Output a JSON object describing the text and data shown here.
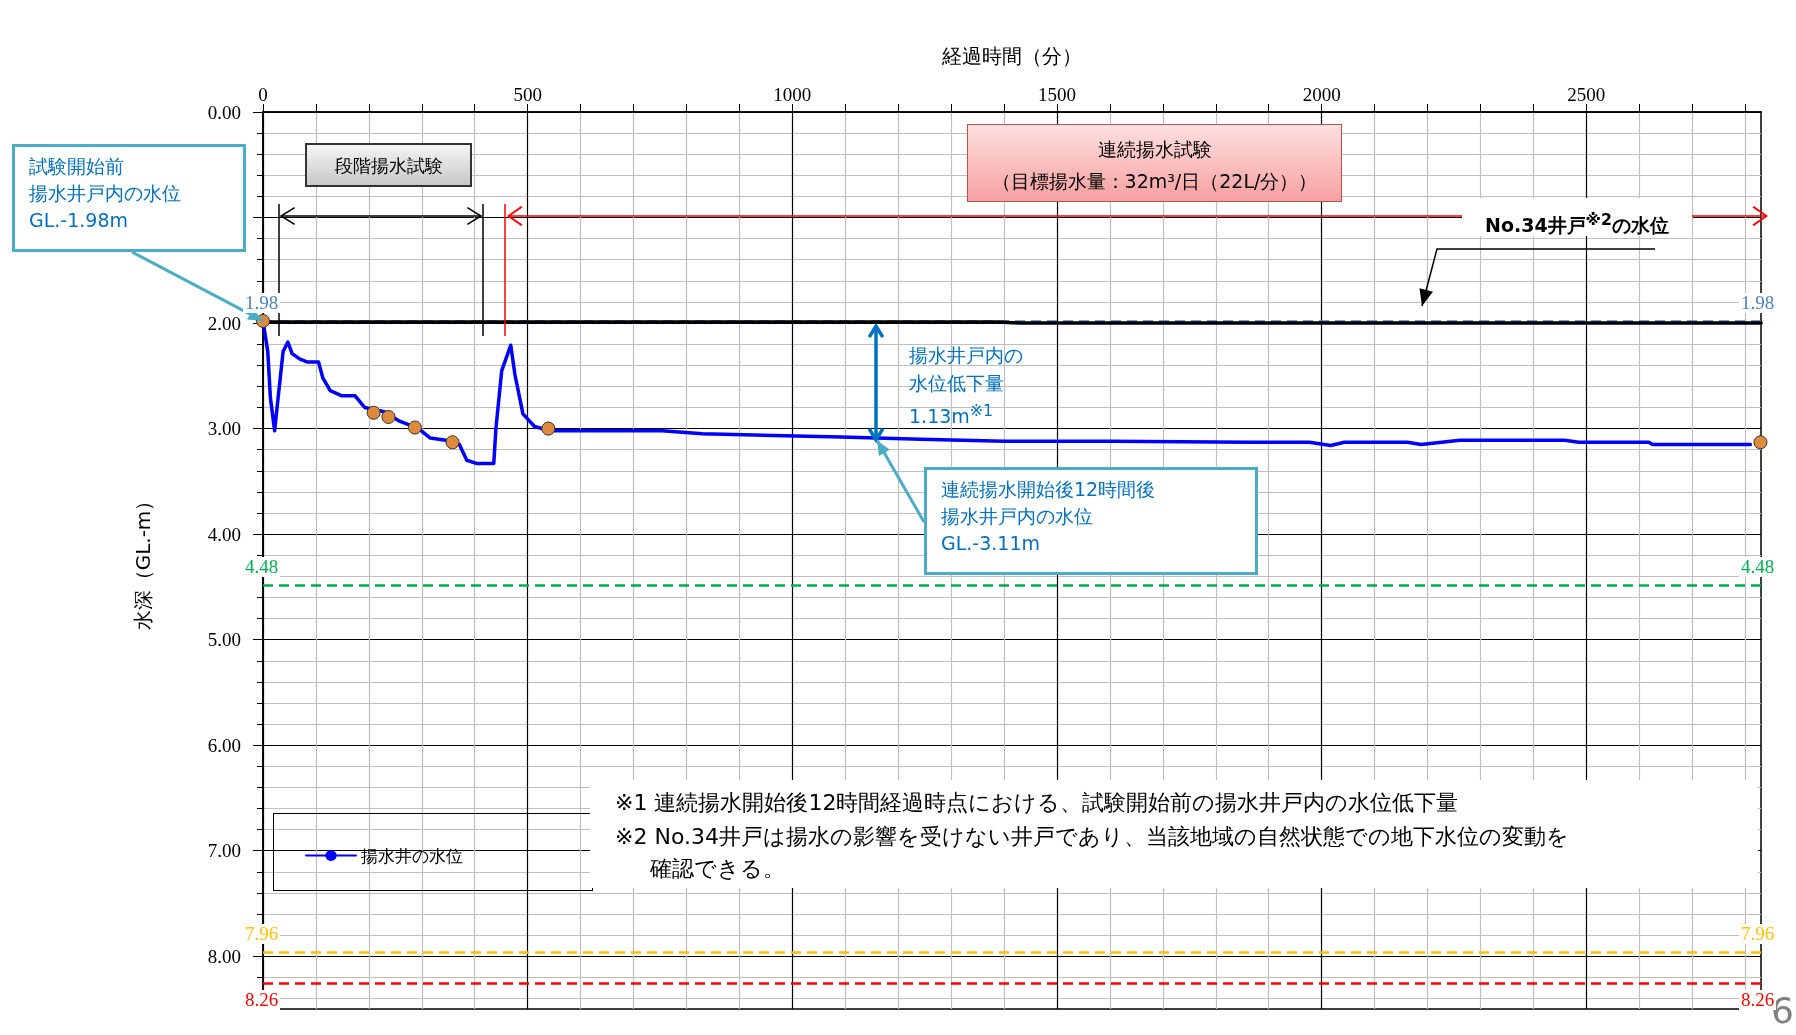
{
  "chart_data": {
    "type": "line",
    "xlabel": "経過時間（分）",
    "ylabel": "水深（GL.-m）",
    "xlim": [
      0,
      2830
    ],
    "xticks": [
      0,
      500,
      1000,
      1500,
      2000,
      2500
    ],
    "ylim": [
      8.5,
      0
    ],
    "yticks": [
      {
        "value": 0,
        "label": "0.00"
      },
      {
        "value": 1,
        "label": null
      },
      {
        "value": 2,
        "label": "2.00"
      },
      {
        "value": 3,
        "label": "3.00"
      },
      {
        "value": 4,
        "label": "4.00"
      },
      {
        "value": 5,
        "label": "5.00"
      },
      {
        "value": 6,
        "label": "6.00"
      },
      {
        "value": 7,
        "label": "7.00"
      },
      {
        "value": 8,
        "label": "8.00"
      }
    ],
    "grid": true,
    "legend": "bottom left",
    "series": [
      {
        "name": "揚水井の水位",
        "type": "line",
        "color": "#0000ff",
        "x": [
          0,
          9,
          14,
          22,
          27,
          38,
          47,
          55,
          69,
          84,
          105,
          113,
          127,
          149,
          174,
          192,
          229,
          258,
          294,
          316,
          345,
          371,
          385,
          403,
          436,
          440,
          451,
          468,
          476,
          491,
          513,
          542,
          585,
          636,
          754,
          830,
          1092,
          1243,
          1400,
          1600,
          1865,
          1977,
          2017,
          2043,
          2162,
          2188,
          2261,
          2459,
          2486,
          2618,
          2625,
          2810
        ],
        "values": [
          1.98,
          2.27,
          2.71,
          3.02,
          2.78,
          2.27,
          2.18,
          2.29,
          2.34,
          2.37,
          2.37,
          2.52,
          2.64,
          2.69,
          2.69,
          2.8,
          2.84,
          2.93,
          3.0,
          3.09,
          3.11,
          3.15,
          3.3,
          3.33,
          3.33,
          3.0,
          2.45,
          2.21,
          2.49,
          2.86,
          2.98,
          3.02,
          3.02,
          3.02,
          3.02,
          3.05,
          3.08,
          3.1,
          3.12,
          3.12,
          3.13,
          3.13,
          3.16,
          3.13,
          3.13,
          3.15,
          3.11,
          3.11,
          3.13,
          3.13,
          3.15,
          3.15
        ]
      },
      {
        "type": "line",
        "color": "#000000",
        "x": [
          0,
          1390,
          1430,
          2830
        ],
        "values": [
          1.99,
          1.99,
          2.0,
          2.0
        ]
      },
      {
        "type": "scatter",
        "marker": "circle",
        "color": "#dd8a3c",
        "x": [
          0,
          209,
          237,
          287,
          358,
          539,
          2829
        ],
        "values": [
          1.98,
          2.85,
          2.89,
          2.99,
          3.13,
          3.0,
          3.13
        ]
      }
    ],
    "ref_lines": [
      {
        "axis": "y",
        "value": 1.98,
        "label": "1.98",
        "color": "#4f81bd",
        "line_style": "dashed"
      },
      {
        "axis": "y",
        "value": 4.48,
        "label": "4.48",
        "color": "#00b050",
        "line_style": "dashed"
      },
      {
        "axis": "y",
        "value": 7.96,
        "label": "7.96",
        "color": "#ffc000",
        "line_style": "dashed"
      },
      {
        "axis": "y",
        "value": 8.26,
        "label": "8.26",
        "color": "#ff0000",
        "line_style": "dashed"
      }
    ],
    "annotations": [
      {
        "text": "試験開始前揚水井戸内の水位GL.-1.98m",
        "x": 0,
        "y": 1.98
      },
      "段階揚水試験",
      "連続揚水試験（目標揚水量：32m³/日（22L/分））",
      "No.34井戸$^{※2}$の水位",
      "揚水井戸内の水位低下量1.13m$^{※1}$",
      {
        "text": "連続揚水開始後12時間後揚水井戸内の水位GL.-3.11m",
        "x": 1160,
        "y": 3.11
      },
      "※1 連続揚水開始後12時間経過時点における、試験開始前の揚水井戸内の水位低下量",
      "※2 No.34井戸は揚水の影響を受けない井戸であり、当該地域の自然状態での地下水位の変動を確認できる。",
      "6"
    ]
  }
}
